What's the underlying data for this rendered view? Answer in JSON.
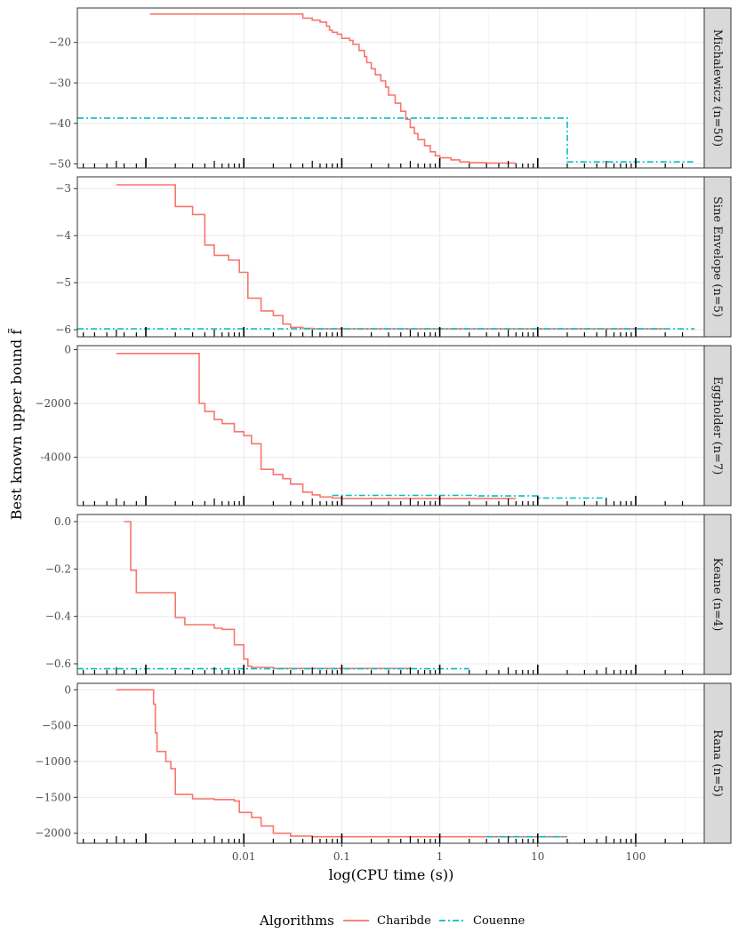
{
  "chart_data": {
    "type": "line",
    "xscale": "log10",
    "xlabel": "log(CPU time (s))",
    "ylabel": "Best known upper bound f̃",
    "xlim": [
      0.0002,
      500
    ],
    "xticks": [
      0.01,
      0.1,
      1,
      10,
      100
    ],
    "xtick_labels": [
      "0.01",
      "0.1",
      "1",
      "10",
      "100"
    ],
    "grid": true,
    "legend": {
      "title": "Algorithms",
      "position": "bottom",
      "entries": [
        {
          "name": "Charibde",
          "color": "#F8766D",
          "dash": "solid"
        },
        {
          "name": "Couenne",
          "color": "#00BFC4",
          "dash": "dashdot"
        }
      ]
    },
    "rug": [
      0.00023,
      0.0003,
      0.0004,
      0.0005,
      0.0006,
      0.0008,
      0.001,
      0.002,
      0.003,
      0.004,
      0.005,
      0.006,
      0.007,
      0.008,
      0.009,
      0.01,
      0.02,
      0.03,
      0.04,
      0.05,
      0.06,
      0.07,
      0.08,
      0.09,
      0.1,
      0.2,
      0.3,
      0.4,
      0.5,
      0.6,
      0.7,
      0.8,
      0.9,
      1,
      2,
      3,
      4,
      5,
      6,
      7,
      8,
      9,
      10,
      20,
      30,
      40,
      50,
      60,
      70,
      80,
      90,
      100,
      200,
      300
    ],
    "panels": [
      {
        "strip": "Michalewicz (n=50)",
        "ylim": [
          -51,
          -11.5
        ],
        "yticks": [
          -20,
          -30,
          -40,
          -50
        ],
        "ytick_labels": [
          "−20",
          "−30",
          "−40",
          "−50"
        ],
        "series": [
          {
            "name": "Charibde",
            "x": [
              0.0011,
              0.035,
              0.04,
              0.05,
              0.06,
              0.07,
              0.075,
              0.08,
              0.09,
              0.1,
              0.12,
              0.13,
              0.15,
              0.17,
              0.18,
              0.2,
              0.22,
              0.25,
              0.28,
              0.3,
              0.35,
              0.4,
              0.45,
              0.5,
              0.55,
              0.6,
              0.7,
              0.8,
              0.9,
              1.0,
              1.3,
              1.6,
              2.0,
              3.0,
              4.0,
              5.0,
              6.0
            ],
            "y": [
              -13,
              -13,
              -14,
              -14.5,
              -15,
              -16,
              -17,
              -17.5,
              -18,
              -19,
              -19.5,
              -20.5,
              -22,
              -23.5,
              -25,
              -26.5,
              -28,
              -29.5,
              -31,
              -33,
              -35,
              -37,
              -39,
              -41,
              -42.5,
              -44,
              -45.5,
              -47,
              -48,
              -48.5,
              -49,
              -49.5,
              -49.7,
              -49.8,
              -49.8,
              -49.8,
              -49.8
            ]
          },
          {
            "name": "Couenne",
            "x": [
              0.0002,
              20,
              20,
              400
            ],
            "y": [
              -38.7,
              -38.7,
              -49.5,
              -49.5
            ]
          }
        ]
      },
      {
        "strip": "Sine Envelope (n=5)",
        "ylim": [
          -6.15,
          -2.75
        ],
        "yticks": [
          -3,
          -4,
          -5,
          -6
        ],
        "ytick_labels": [
          "−3",
          "−4",
          "−5",
          "−6"
        ],
        "series": [
          {
            "name": "Charibde",
            "x": [
              0.0005,
              0.002,
              0.003,
              0.004,
              0.005,
              0.007,
              0.009,
              0.011,
              0.015,
              0.02,
              0.025,
              0.03,
              0.04,
              0.05,
              0.1,
              1,
              10,
              200
            ],
            "y": [
              -2.92,
              -3.38,
              -3.55,
              -4.2,
              -4.42,
              -4.52,
              -4.78,
              -5.33,
              -5.6,
              -5.7,
              -5.88,
              -5.95,
              -5.97,
              -5.98,
              -5.98,
              -5.98,
              -5.98,
              -5.98
            ]
          },
          {
            "name": "Couenne",
            "x": [
              0.0002,
              400
            ],
            "y": [
              -5.98,
              -5.98
            ]
          }
        ]
      },
      {
        "strip": "Eggholder (n=7)",
        "ylim": [
          -5800,
          150
        ],
        "yticks": [
          0,
          -2000,
          -4000
        ],
        "ytick_labels": [
          "0",
          "−2000",
          "-4000"
        ],
        "series": [
          {
            "name": "Charibde",
            "x": [
              0.0005,
              0.0035,
              0.004,
              0.005,
              0.006,
              0.008,
              0.01,
              0.012,
              0.015,
              0.02,
              0.025,
              0.03,
              0.04,
              0.05,
              0.06,
              0.08,
              0.1,
              1,
              5,
              6
            ],
            "y": [
              -140,
              -2000,
              -2300,
              -2600,
              -2750,
              -3050,
              -3200,
              -3500,
              -4450,
              -4650,
              -4800,
              -5000,
              -5300,
              -5400,
              -5480,
              -5520,
              -5540,
              -5540,
              -5540,
              -5540
            ]
          },
          {
            "name": "Couenne",
            "x": [
              0.08,
              1.0,
              2.5,
              10,
              50
            ],
            "y": [
              -5420,
              -5420,
              -5440,
              -5520,
              -5540
            ]
          }
        ]
      },
      {
        "strip": "Keane (n=4)",
        "ylim": [
          -0.645,
          0.03
        ],
        "yticks": [
          0.0,
          -0.2,
          -0.4,
          -0.6
        ],
        "ytick_labels": [
          "0.0",
          "−0.2",
          "−0.4",
          "−0.6"
        ],
        "series": [
          {
            "name": "Charibde",
            "x": [
              0.0006,
              0.0007,
              0.0008,
              0.001,
              0.002,
              0.0025,
              0.005,
              0.006,
              0.008,
              0.01,
              0.011,
              0.012,
              0.02,
              0.05,
              0.1,
              0.5
            ],
            "y": [
              0.0,
              -0.205,
              -0.3,
              -0.3,
              -0.405,
              -0.435,
              -0.45,
              -0.455,
              -0.52,
              -0.58,
              -0.61,
              -0.615,
              -0.62,
              -0.62,
              -0.62,
              -0.62
            ]
          },
          {
            "name": "Couenne",
            "x": [
              0.0002,
              2
            ],
            "y": [
              -0.621,
              -0.621
            ]
          }
        ]
      },
      {
        "strip": "Rana (n=5)",
        "ylim": [
          -2140,
          90
        ],
        "yticks": [
          0,
          -500,
          -1000,
          -1500,
          -2000
        ],
        "ytick_labels": [
          "0",
          "−500",
          "−1000",
          "−1500",
          "−2000"
        ],
        "series": [
          {
            "name": "Charibde",
            "x": [
              0.0005,
              0.0012,
              0.00125,
              0.0013,
              0.0016,
              0.0018,
              0.002,
              0.003,
              0.005,
              0.008,
              0.009,
              0.012,
              0.015,
              0.02,
              0.03,
              0.05,
              0.1,
              1,
              10,
              20
            ],
            "y": [
              0,
              -200,
              -600,
              -860,
              -1000,
              -1100,
              -1460,
              -1520,
              -1530,
              -1550,
              -1710,
              -1780,
              -1900,
              -2000,
              -2040,
              -2050,
              -2050,
              -2050,
              -2050,
              -2050
            ]
          },
          {
            "name": "Couenne",
            "x": [
              3,
              10,
              20
            ],
            "y": [
              -2050,
              -2050,
              -2050
            ]
          }
        ]
      }
    ]
  }
}
